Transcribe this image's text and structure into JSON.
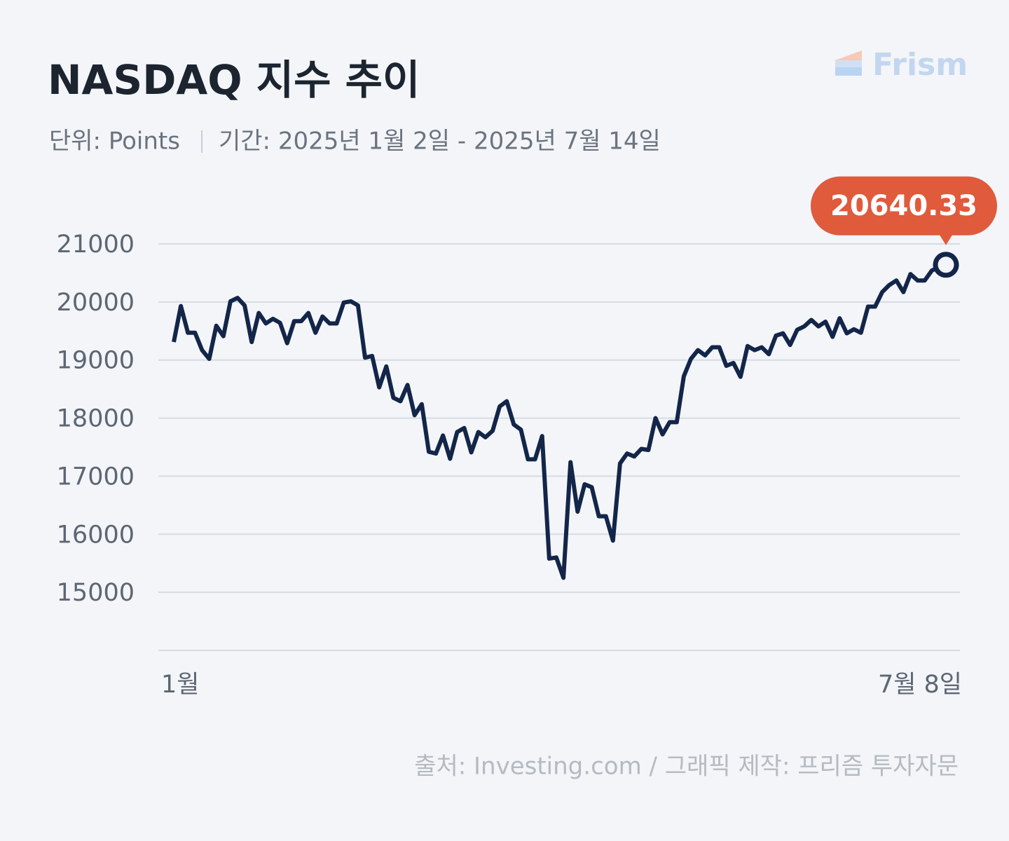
{
  "chart_data": {
    "type": "line",
    "title": "NASDAQ 지수 추이",
    "subtitle": "단위: Points",
    "period": "기간: 2025년 1월 2일 - 2025년 7월 14일",
    "logo": "Frism",
    "source": "출처: Investing.com / 그래픽 제작: 프리즘 투자자문",
    "categories": [
      "1월",
      null,
      null,
      null,
      null,
      null,
      null,
      null,
      null,
      null,
      null,
      null,
      null,
      null,
      null,
      null,
      null,
      null,
      null,
      null,
      null,
      null,
      null,
      null,
      null,
      null,
      null,
      null,
      null,
      null,
      null,
      null,
      null,
      null,
      null,
      null,
      null,
      null,
      null,
      null,
      null,
      null,
      null,
      null,
      null,
      null,
      null,
      null,
      null,
      null,
      null,
      null,
      null,
      null,
      null,
      null,
      null,
      null,
      null,
      null,
      null,
      null,
      null,
      null,
      null,
      null,
      null,
      null,
      null,
      null,
      null,
      null,
      null,
      null,
      null,
      null,
      null,
      null,
      null,
      null,
      null,
      null,
      null,
      null,
      null,
      null,
      null,
      null,
      null,
      null,
      null,
      null,
      null,
      null,
      null,
      null,
      null,
      null,
      null,
      null,
      null,
      null,
      null,
      null,
      null,
      null,
      null,
      null,
      null,
      "7월 8일"
    ],
    "series": [
      {
        "name": "NASDAQ",
        "color": "#132649",
        "values": [
          19310,
          19930,
          19470,
          19470,
          19170,
          19020,
          19590,
          19410,
          20010,
          20070,
          19940,
          19310,
          19810,
          19630,
          19710,
          19640,
          19290,
          19670,
          19670,
          19810,
          19470,
          19750,
          19630,
          19630,
          19990,
          20010,
          19940,
          19040,
          19070,
          18530,
          18890,
          18350,
          18290,
          18570,
          18050,
          18240,
          17420,
          17390,
          17700,
          17300,
          17760,
          17830,
          17410,
          17760,
          17670,
          17780,
          18200,
          18290,
          17890,
          17800,
          17290,
          17290,
          17690,
          15580,
          15600,
          15250,
          17240,
          16390,
          16860,
          16810,
          16310,
          16310,
          15890,
          17220,
          17390,
          17340,
          17470,
          17450,
          18000,
          17720,
          17930,
          17930,
          18720,
          19020,
          19170,
          19080,
          19220,
          19220,
          18900,
          18950,
          18710,
          19240,
          19170,
          19220,
          19100,
          19420,
          19460,
          19260,
          19520,
          19580,
          19690,
          19580,
          19660,
          19400,
          19720,
          19460,
          19530,
          19470,
          19920,
          19920,
          20170,
          20290,
          20370,
          20170,
          20480,
          20370,
          20370,
          20540,
          20600,
          20640.33
        ]
      }
    ],
    "highlight_color": "#e05a3c",
    "ylim": [
      14000,
      21000
    ],
    "yticks": [
      15000,
      16000,
      17000,
      18000,
      19000,
      20000,
      21000
    ],
    "grid": true
  }
}
